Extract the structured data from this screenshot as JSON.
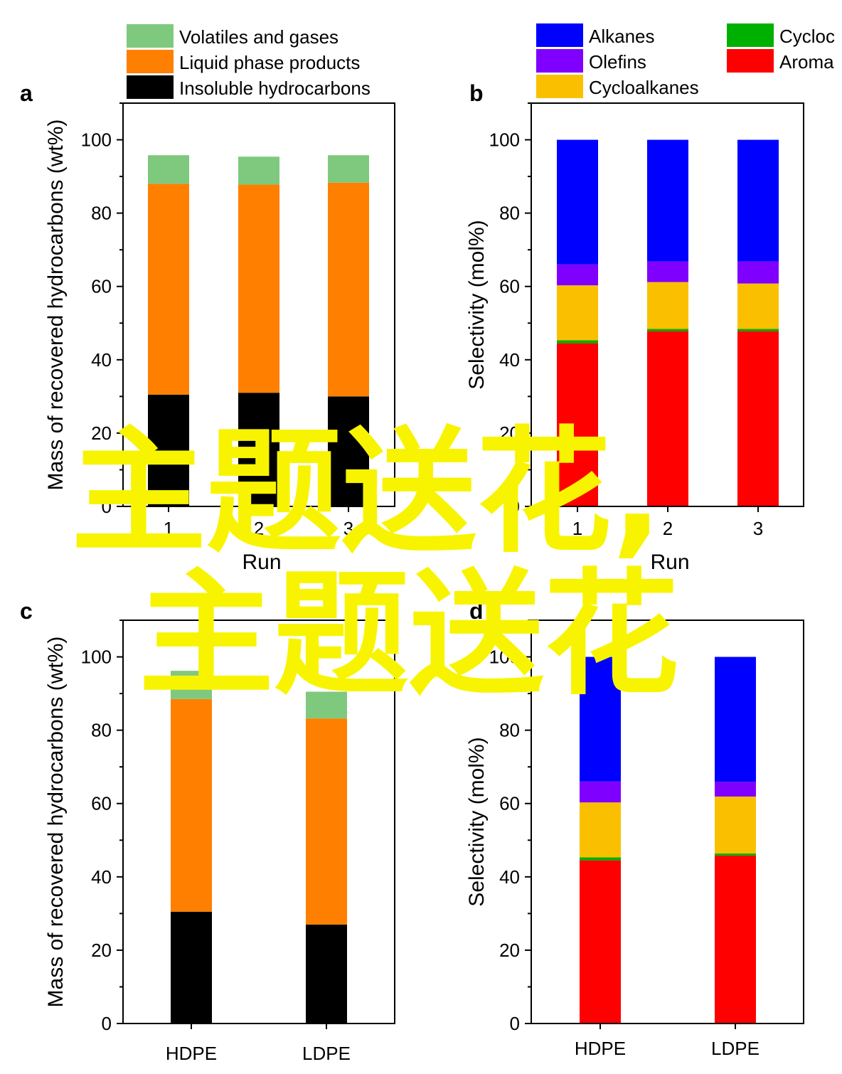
{
  "colors": {
    "volatiles": "#7fc97f",
    "liquid": "#ff8000",
    "insoluble": "#000000",
    "alkanes": "#0000ff",
    "olefins": "#8000ff",
    "cycloalkanes": "#fac000",
    "cyclo_green": "#00b000",
    "aromatics": "#ff0000",
    "watermark": "#f8f400"
  },
  "watermark": [
    "主题送花,",
    "主题送花"
  ],
  "chart_data": [
    {
      "panel": "a",
      "type": "bar",
      "stacked": true,
      "xlabel": "Run",
      "ylabel": "Mass of recovered hydrocarbons (wt%)",
      "ylim": [
        0,
        110
      ],
      "yticks": [
        "0",
        "20",
        "40",
        "60",
        "80",
        "100"
      ],
      "categories": [
        "1",
        "2",
        "3"
      ],
      "series": [
        {
          "name": "Insoluble hydrocarbons",
          "color_key": "insoluble",
          "values": [
            30.5,
            31.0,
            30.0
          ]
        },
        {
          "name": "Liquid phase products",
          "color_key": "liquid",
          "values": [
            57.5,
            56.8,
            58.3
          ]
        },
        {
          "name": "Volatiles and gases",
          "color_key": "volatiles",
          "values": [
            7.8,
            7.6,
            7.5
          ]
        }
      ],
      "legend": [
        "Volatiles and gases",
        "Liquid phase products",
        "Insoluble hydrocarbons"
      ],
      "legend_position": "top"
    },
    {
      "panel": "b",
      "type": "bar",
      "stacked": true,
      "xlabel": "Run",
      "ylabel": "Selectivity (mol%)",
      "ylim": [
        0,
        110
      ],
      "yticks": [
        "0",
        "20",
        "40",
        "60",
        "80",
        "100"
      ],
      "categories": [
        "1",
        "2",
        "3"
      ],
      "series": [
        {
          "name": "Aroma",
          "color_key": "aromatics",
          "values": [
            44.5,
            47.8,
            47.8
          ]
        },
        {
          "name": "Cycloc",
          "color_key": "cyclo_green",
          "values": [
            0.8,
            0.6,
            0.6
          ]
        },
        {
          "name": "Cycloalkanes",
          "color_key": "cycloalkanes",
          "values": [
            15.0,
            12.8,
            12.4
          ]
        },
        {
          "name": "Olefins",
          "color_key": "olefins",
          "values": [
            5.7,
            5.6,
            6.0
          ]
        },
        {
          "name": "Alkanes",
          "color_key": "alkanes",
          "values": [
            34.0,
            33.2,
            33.2
          ]
        }
      ],
      "legend": [
        "Alkanes",
        "Olefins",
        "Cycloalkanes",
        "Cycloc",
        "Aroma"
      ],
      "legend_position": "top"
    },
    {
      "panel": "c",
      "type": "bar",
      "stacked": true,
      "xlabel": "",
      "ylabel": "Mass of recovered hydrocarbons (wt%)",
      "ylim": [
        0,
        110
      ],
      "yticks": [
        "0",
        "20",
        "40",
        "60",
        "80",
        "100"
      ],
      "categories": [
        "HDPE",
        "LDPE"
      ],
      "series": [
        {
          "name": "Insoluble hydrocarbons",
          "color_key": "insoluble",
          "values": [
            30.5,
            27.0
          ]
        },
        {
          "name": "Liquid phase products",
          "color_key": "liquid",
          "values": [
            58.0,
            56.2
          ]
        },
        {
          "name": "Volatiles and gases",
          "color_key": "volatiles",
          "values": [
            7.7,
            7.3
          ]
        }
      ]
    },
    {
      "panel": "d",
      "type": "bar",
      "stacked": true,
      "xlabel": "",
      "ylabel": "Selectivity (mol%)",
      "ylim": [
        0,
        110
      ],
      "yticks": [
        "0",
        "20",
        "40",
        "60",
        "80",
        "100"
      ],
      "categories": [
        "HDPE",
        "LDPE"
      ],
      "series": [
        {
          "name": "Aroma",
          "color_key": "aromatics",
          "values": [
            44.5,
            45.8
          ]
        },
        {
          "name": "Cycloc",
          "color_key": "cyclo_green",
          "values": [
            0.8,
            0.6
          ]
        },
        {
          "name": "Cycloalkanes",
          "color_key": "cycloalkanes",
          "values": [
            15.0,
            15.5
          ]
        },
        {
          "name": "Olefins",
          "color_key": "olefins",
          "values": [
            5.7,
            4.0
          ]
        },
        {
          "name": "Alkanes",
          "color_key": "alkanes",
          "values": [
            34.0,
            34.1
          ]
        }
      ]
    }
  ]
}
